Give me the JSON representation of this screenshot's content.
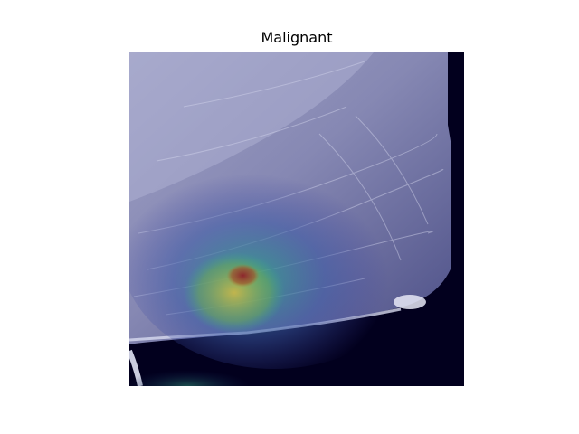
{
  "figure": {
    "title": "Malignant"
  },
  "image": {
    "description_icon": "mammogram-heatmap-overlay",
    "colors": {
      "tissue_light": "#c8cbe6",
      "tissue_mid": "#8e90b8",
      "background_dark": "#02001e",
      "heat_low": "#3b3f9e",
      "heat_mid": "#3aa88a",
      "heat_high": "#d9c64a",
      "heat_peak": "#8e1f2a"
    }
  }
}
